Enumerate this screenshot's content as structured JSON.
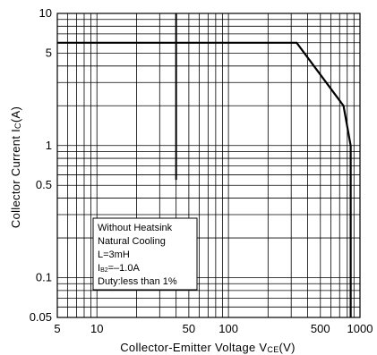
{
  "chart_data": {
    "type": "line",
    "title": "",
    "xlabel": "Collector-Emitter Voltage V",
    "xlabel_sub": "CE",
    "xlabel_unit": "(V)",
    "ylabel": "Collector Current I",
    "ylabel_sub": "C",
    "ylabel_unit": "(A)",
    "xscale": "log",
    "yscale": "log",
    "xlim": [
      5,
      1000
    ],
    "ylim": [
      0.05,
      10
    ],
    "grid": true,
    "x_ticks": [
      {
        "value": 5,
        "label": "5"
      },
      {
        "value": 10,
        "label": "10"
      },
      {
        "value": 50,
        "label": "50"
      },
      {
        "value": 100,
        "label": "100"
      },
      {
        "value": 500,
        "label": "500"
      },
      {
        "value": 1000,
        "label": "1000"
      }
    ],
    "y_ticks": [
      {
        "value": 0.05,
        "label": "0.05"
      },
      {
        "value": 0.1,
        "label": "0.1"
      },
      {
        "value": 0.5,
        "label": "0.5"
      },
      {
        "value": 1,
        "label": "1"
      },
      {
        "value": 5,
        "label": "5"
      },
      {
        "value": 10,
        "label": "10"
      }
    ],
    "series": [
      {
        "points": [
          {
            "x": 5,
            "y": 6
          },
          {
            "x": 330,
            "y": 6
          },
          {
            "x": 750,
            "y": 2
          },
          {
            "x": 850,
            "y": 1
          },
          {
            "x": 850,
            "y": 0.05
          }
        ]
      }
    ],
    "marker_line": {
      "x": 40,
      "y_from": 10,
      "y_to": 0.55
    },
    "annotation": {
      "lines": [
        {
          "text": "Without Heatsink"
        },
        {
          "text": "Natural Cooling"
        },
        {
          "text": "L=3mH"
        },
        {
          "prefix": "I",
          "sub": "B2",
          "text": "=–1.0A"
        },
        {
          "text": "Duty:less than 1%"
        }
      ]
    }
  }
}
